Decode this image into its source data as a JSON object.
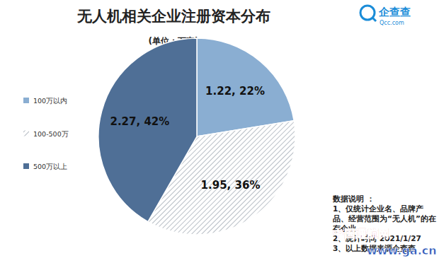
{
  "chart_data": {
    "type": "pie",
    "title": "无人机相关企业注册资本分布",
    "subtitle": "(单位：万家)",
    "categories": [
      "100万以内",
      "100-500万",
      "500万以上"
    ],
    "values": [
      1.22,
      1.95,
      2.27
    ],
    "value_labels": [
      "1.22, 22%",
      "1.95, 36%",
      "2.27, 42%"
    ],
    "colors": [
      "#8aaed2",
      "#b9bfc6",
      "#4f6f96"
    ],
    "data_labels": true,
    "legend": "left",
    "logo": [
      "企查查",
      "Qcc.com"
    ],
    "notes": {
      "heading": "数据说明 ：",
      "lines": [
        "1、仅统计企业名、品牌产品、经营范围为“无人机”的在存企业",
        "2、统计时间 2021/1/27",
        "3、以上数据来源企查查"
      ]
    },
    "watermark": [
      "中国通航网",
      "www.ga.cn"
    ]
  }
}
